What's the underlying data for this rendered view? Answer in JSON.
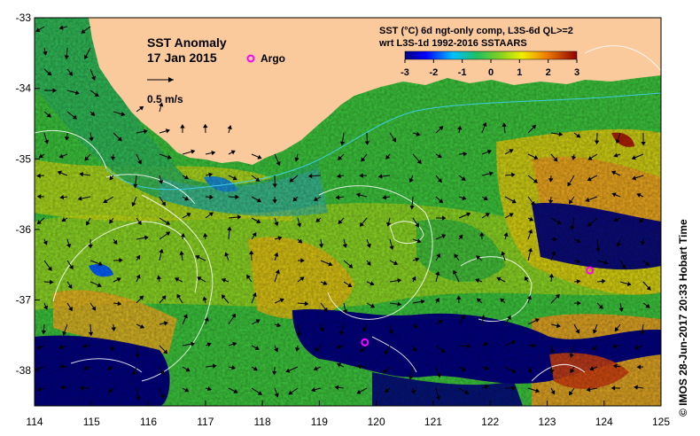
{
  "title": "SST Anomaly",
  "date": "17 Jan 2015",
  "argo_label": "Argo",
  "velocity_label": "0.5 m/s",
  "colorbar": {
    "title_line1": "SST (°C) 6d ngt-only comp, L3S-6d QL>=2",
    "title_line2": "wrt L3S-1d 1992-2016 SSTAARS",
    "ticks": [
      "-3",
      "-2",
      "-1",
      "0",
      "1",
      "2",
      "3"
    ],
    "range": [
      -3,
      3
    ]
  },
  "x_ticks": [
    "114",
    "115",
    "116",
    "117",
    "118",
    "119",
    "120",
    "121",
    "122",
    "123",
    "124",
    "125"
  ],
  "y_ticks": [
    "-33",
    "-34",
    "-35",
    "-36",
    "-37",
    "-38"
  ],
  "credit": "©  IMOS 28-Jun-2017 20:33 Hobart Time",
  "colors": {
    "land": "#fac99c",
    "argo": "#ff00ff",
    "deep_blue": "#000080",
    "green": "#22c55e",
    "yellow": "#e5e000",
    "orange": "#f0a020",
    "red": "#c03000"
  },
  "argo_floats": [
    {
      "lon": 119.8,
      "lat": -37.6
    },
    {
      "lon": 123.75,
      "lat": -36.58
    }
  ]
}
